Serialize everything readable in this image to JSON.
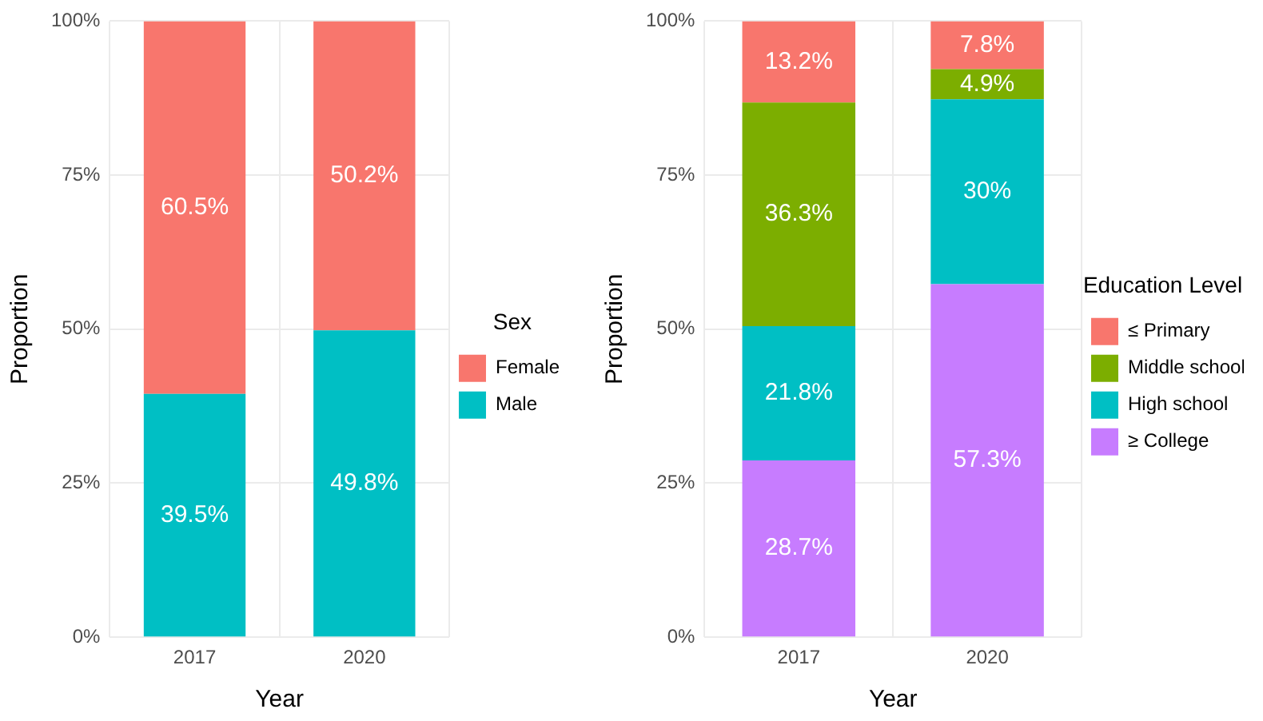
{
  "chart_data": [
    {
      "type": "bar",
      "stacked": true,
      "xlabel": "Year",
      "ylabel": "Proportion",
      "legend_title": "Sex",
      "legend": "right",
      "grid": true,
      "categories": [
        "2017",
        "2020"
      ],
      "ylim": [
        0,
        100
      ],
      "yticks": [
        {
          "value": 0,
          "label": "0%"
        },
        {
          "value": 25,
          "label": "25%"
        },
        {
          "value": 50,
          "label": "50%"
        },
        {
          "value": 75,
          "label": "75%"
        },
        {
          "value": 100,
          "label": "100%"
        }
      ],
      "series": [
        {
          "name": "Male",
          "color": "#00bfc4",
          "values": [
            39.5,
            49.8
          ],
          "value_labels": [
            "39.5%",
            "49.8%"
          ]
        },
        {
          "name": "Female",
          "color": "#f8766d",
          "values": [
            60.5,
            50.2
          ],
          "value_labels": [
            "60.5%",
            "50.2%"
          ]
        }
      ]
    },
    {
      "type": "bar",
      "stacked": true,
      "xlabel": "Year",
      "ylabel": "Proportion",
      "legend_title": "Education Level",
      "legend": "right",
      "grid": true,
      "categories": [
        "2017",
        "2020"
      ],
      "ylim": [
        0,
        100
      ],
      "yticks": [
        {
          "value": 0,
          "label": "0%"
        },
        {
          "value": 25,
          "label": "25%"
        },
        {
          "value": 50,
          "label": "50%"
        },
        {
          "value": 75,
          "label": "75%"
        },
        {
          "value": 100,
          "label": "100%"
        }
      ],
      "series": [
        {
          "name": "≥ College",
          "color": "#c77cff",
          "values": [
            28.7,
            57.3
          ],
          "value_labels": [
            "28.7%",
            "57.3%"
          ]
        },
        {
          "name": "High school",
          "color": "#00bfc4",
          "values": [
            21.8,
            30
          ],
          "value_labels": [
            "21.8%",
            "30%"
          ]
        },
        {
          "name": "Middle school",
          "color": "#7cae00",
          "values": [
            36.3,
            4.9
          ],
          "value_labels": [
            "36.3%",
            "4.9%"
          ]
        },
        {
          "name": "≤ Primary",
          "color": "#f8766d",
          "values": [
            13.2,
            7.8
          ],
          "value_labels": [
            "13.2%",
            "7.8%"
          ]
        }
      ]
    }
  ]
}
